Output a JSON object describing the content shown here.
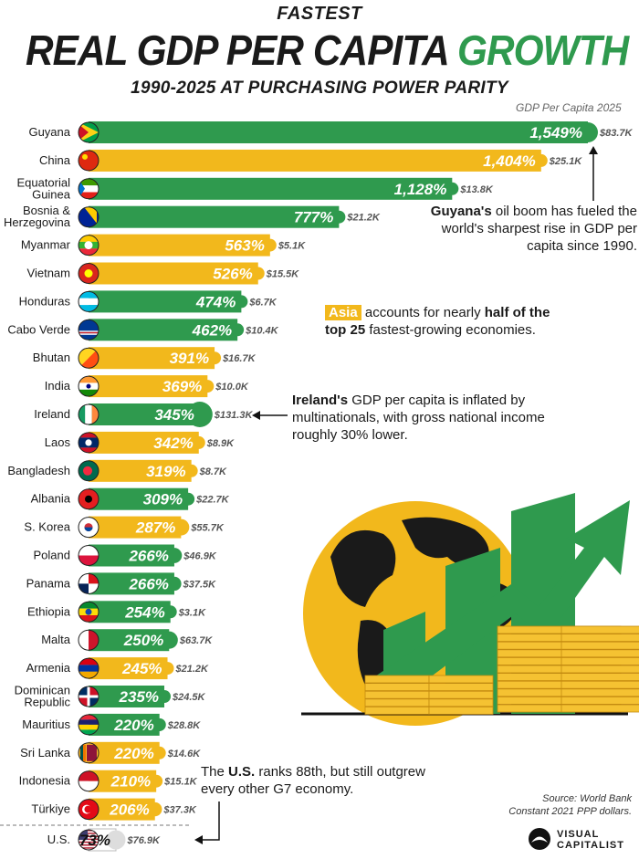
{
  "header": {
    "kicker": "FASTEST",
    "title_main": "REAL GDP PER CAPITA ",
    "title_accent": "GROWTH",
    "subtitle": "1990-2025 AT PURCHASING POWER PARITY",
    "column_label": "GDP Per Capita 2025"
  },
  "colors": {
    "asia": "#f2b81c",
    "other": "#2f9a4e",
    "us": "#ffffff",
    "arrow_green": "#2f9a4e",
    "globe": "#f2b81c",
    "coins": "#f5c232"
  },
  "chart_data": {
    "type": "bar",
    "orientation": "horizontal",
    "title": "REAL GDP PER CAPITA GROWTH",
    "subtitle": "1990-2025 AT PURCHASING POWER PARITY",
    "value_unit": "%",
    "xlim": [
      0,
      1549
    ],
    "grid": false,
    "legend": "none",
    "categories": [
      {
        "label": "Guyana",
        "growth": "1,549%",
        "value": 1549,
        "gdp": "$83.7K",
        "gdp_k": 83.7,
        "region": "other",
        "flag": "guyana-flag"
      },
      {
        "label": "China",
        "growth": "1,404%",
        "value": 1404,
        "gdp": "$25.1K",
        "gdp_k": 25.1,
        "region": "asia",
        "flag": "china-flag"
      },
      {
        "label": "Equatorial\nGuinea",
        "growth": "1,128%",
        "value": 1128,
        "gdp": "$13.8K",
        "gdp_k": 13.8,
        "region": "other",
        "flag": "equatorial-guinea-flag"
      },
      {
        "label": "Bosnia &\nHerzegovina",
        "growth": "777%",
        "value": 777,
        "gdp": "$21.2K",
        "gdp_k": 21.2,
        "region": "other",
        "flag": "bosnia-flag"
      },
      {
        "label": "Myanmar",
        "growth": "563%",
        "value": 563,
        "gdp": "$5.1K",
        "gdp_k": 5.1,
        "region": "asia",
        "flag": "myanmar-flag"
      },
      {
        "label": "Vietnam",
        "growth": "526%",
        "value": 526,
        "gdp": "$15.5K",
        "gdp_k": 15.5,
        "region": "asia",
        "flag": "vietnam-flag"
      },
      {
        "label": "Honduras",
        "growth": "474%",
        "value": 474,
        "gdp": "$6.7K",
        "gdp_k": 6.7,
        "region": "other",
        "flag": "honduras-flag"
      },
      {
        "label": "Cabo Verde",
        "growth": "462%",
        "value": 462,
        "gdp": "$10.4K",
        "gdp_k": 10.4,
        "region": "other",
        "flag": "cabo-verde-flag"
      },
      {
        "label": "Bhutan",
        "growth": "391%",
        "value": 391,
        "gdp": "$16.7K",
        "gdp_k": 16.7,
        "region": "asia",
        "flag": "bhutan-flag"
      },
      {
        "label": "India",
        "growth": "369%",
        "value": 369,
        "gdp": "$10.0K",
        "gdp_k": 10.0,
        "region": "asia",
        "flag": "india-flag"
      },
      {
        "label": "Ireland",
        "growth": "345%",
        "value": 345,
        "gdp": "$131.3K",
        "gdp_k": 131.3,
        "region": "other",
        "flag": "ireland-flag"
      },
      {
        "label": "Laos",
        "growth": "342%",
        "value": 342,
        "gdp": "$8.9K",
        "gdp_k": 8.9,
        "region": "asia",
        "flag": "laos-flag"
      },
      {
        "label": "Bangladesh",
        "growth": "319%",
        "value": 319,
        "gdp": "$8.7K",
        "gdp_k": 8.7,
        "region": "asia",
        "flag": "bangladesh-flag"
      },
      {
        "label": "Albania",
        "growth": "309%",
        "value": 309,
        "gdp": "$22.7K",
        "gdp_k": 22.7,
        "region": "other",
        "flag": "albania-flag"
      },
      {
        "label": "S. Korea",
        "growth": "287%",
        "value": 287,
        "gdp": "$55.7K",
        "gdp_k": 55.7,
        "region": "asia",
        "flag": "south-korea-flag"
      },
      {
        "label": "Poland",
        "growth": "266%",
        "value": 266,
        "gdp": "$46.9K",
        "gdp_k": 46.9,
        "region": "other",
        "flag": "poland-flag"
      },
      {
        "label": "Panama",
        "growth": "266%",
        "value": 266,
        "gdp": "$37.5K",
        "gdp_k": 37.5,
        "region": "other",
        "flag": "panama-flag"
      },
      {
        "label": "Ethiopia",
        "growth": "254%",
        "value": 254,
        "gdp": "$3.1K",
        "gdp_k": 3.1,
        "region": "other",
        "flag": "ethiopia-flag"
      },
      {
        "label": "Malta",
        "growth": "250%",
        "value": 250,
        "gdp": "$63.7K",
        "gdp_k": 63.7,
        "region": "other",
        "flag": "malta-flag"
      },
      {
        "label": "Armenia",
        "growth": "245%",
        "value": 245,
        "gdp": "$21.2K",
        "gdp_k": 21.2,
        "region": "asia",
        "flag": "armenia-flag"
      },
      {
        "label": "Dominican\nRepublic",
        "growth": "235%",
        "value": 235,
        "gdp": "$24.5K",
        "gdp_k": 24.5,
        "region": "other",
        "flag": "dominican-republic-flag"
      },
      {
        "label": "Mauritius",
        "growth": "220%",
        "value": 220,
        "gdp": "$28.8K",
        "gdp_k": 28.8,
        "region": "other",
        "flag": "mauritius-flag"
      },
      {
        "label": "Sri Lanka",
        "growth": "220%",
        "value": 220,
        "gdp": "$14.6K",
        "gdp_k": 14.6,
        "region": "asia",
        "flag": "sri-lanka-flag"
      },
      {
        "label": "Indonesia",
        "growth": "210%",
        "value": 210,
        "gdp": "$15.1K",
        "gdp_k": 15.1,
        "region": "asia",
        "flag": "indonesia-flag"
      },
      {
        "label": "Türkiye",
        "growth": "206%",
        "value": 206,
        "gdp": "$37.3K",
        "gdp_k": 37.3,
        "region": "asia",
        "flag": "turkiye-flag"
      },
      {
        "label": "U.S.",
        "growth": "73%",
        "value": 73,
        "gdp": "$76.9K",
        "gdp_k": 76.9,
        "region": "us",
        "flag": "us-flag"
      }
    ]
  },
  "annotations": {
    "guyana": {
      "bold": "Guyana's",
      "text": " oil boom has fueled the world's sharpest rise in GDP per capita since 1990."
    },
    "asia": {
      "tag": "Asia",
      "text1": " accounts for nearly ",
      "bold1": "half of the",
      "bold2": "top 25",
      "text2": " fastest-growing economies."
    },
    "ireland": {
      "bold": "Ireland's",
      "text": " GDP per capita is inflated by multinationals, with gross national income roughly 30% lower."
    },
    "us": {
      "text1": "The ",
      "bold": "U.S.",
      "text2": " ranks 88th, but still outgrew every other G7 economy."
    }
  },
  "footer": {
    "source_line1": "Source: World Bank",
    "source_line2": "Constant 2021 PPP dollars.",
    "logo_line1": "VISUAL",
    "logo_line2": "CAPITALIST"
  }
}
